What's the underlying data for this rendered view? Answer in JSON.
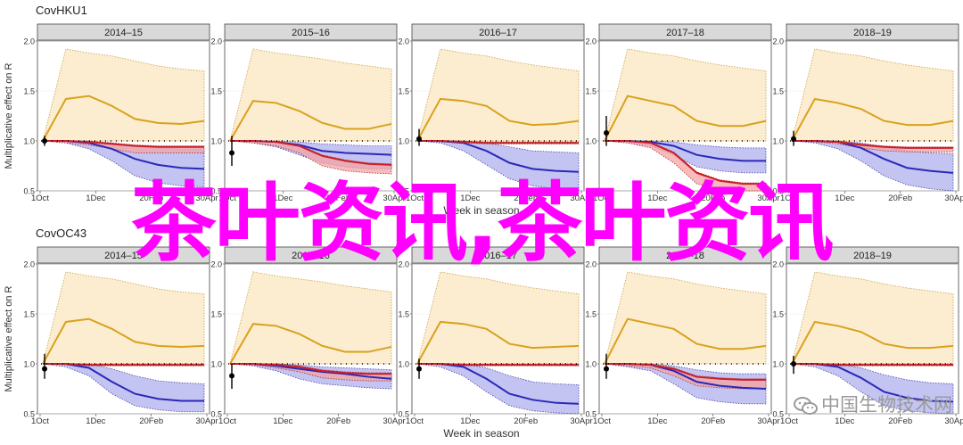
{
  "chart_data": [
    {
      "type": "area",
      "title": "CovHKU1",
      "ylabel": "Multiplicative effect on R",
      "xlabel": "Week in season",
      "ylim": [
        0.5,
        2.0
      ],
      "yticks": [
        "0.5",
        "1.0",
        "1.5",
        "2.0"
      ],
      "xticks": [
        "1Oct",
        "1Dec",
        "20Feb",
        "30Apr"
      ],
      "panels": [
        {
          "season": "2014–15",
          "orange_mid": [
            1.0,
            1.42,
            1.45,
            1.35,
            1.22,
            1.18,
            1.17,
            1.2
          ],
          "orange_lo": [
            1.0,
            1.0,
            1.0,
            1.0,
            1.0,
            1.0,
            1.0,
            1.0
          ],
          "orange_hi": [
            1.0,
            1.92,
            1.88,
            1.85,
            1.8,
            1.75,
            1.72,
            1.7
          ],
          "red_mid": [
            1.0,
            1.0,
            0.99,
            0.97,
            0.95,
            0.94,
            0.94,
            0.94
          ],
          "red_lo": [
            1.0,
            0.98,
            0.96,
            0.92,
            0.88,
            0.88,
            0.88,
            0.88
          ],
          "blue_mid": [
            1.0,
            1.0,
            0.98,
            0.92,
            0.82,
            0.76,
            0.73,
            0.72
          ],
          "blue_lo": [
            1.0,
            0.98,
            0.92,
            0.8,
            0.65,
            0.58,
            0.55,
            0.54
          ],
          "blue_hi": [
            1.0,
            1.0,
            1.0,
            0.98,
            0.95,
            0.93,
            0.92,
            0.92
          ],
          "marker": 1.0,
          "marker_lo": 0.95,
          "marker_hi": 1.05
        },
        {
          "season": "2015–16",
          "orange_mid": [
            1.0,
            1.4,
            1.38,
            1.3,
            1.18,
            1.12,
            1.12,
            1.17
          ],
          "orange_lo": [
            1.0,
            1.0,
            1.0,
            1.0,
            1.0,
            1.0,
            1.0,
            1.0
          ],
          "orange_hi": [
            1.0,
            1.92,
            1.88,
            1.85,
            1.82,
            1.78,
            1.75,
            1.72
          ],
          "red_mid": [
            1.0,
            1.0,
            0.99,
            0.95,
            0.85,
            0.8,
            0.77,
            0.76
          ],
          "red_lo": [
            1.0,
            0.98,
            0.95,
            0.88,
            0.75,
            0.7,
            0.68,
            0.67
          ],
          "blue_mid": [
            1.0,
            1.0,
            0.99,
            0.96,
            0.9,
            0.88,
            0.87,
            0.86
          ],
          "blue_lo": [
            1.0,
            0.98,
            0.94,
            0.86,
            0.78,
            0.74,
            0.72,
            0.72
          ],
          "blue_hi": [
            1.0,
            1.0,
            1.0,
            0.99,
            0.97,
            0.96,
            0.95,
            0.95
          ],
          "marker": 0.88,
          "marker_lo": 0.75,
          "marker_hi": 1.05
        },
        {
          "season": "2016–17",
          "orange_mid": [
            1.0,
            1.42,
            1.4,
            1.35,
            1.2,
            1.16,
            1.17,
            1.2
          ],
          "orange_lo": [
            1.0,
            1.0,
            1.0,
            1.0,
            1.0,
            1.0,
            1.0,
            1.0
          ],
          "orange_hi": [
            1.0,
            1.92,
            1.88,
            1.85,
            1.8,
            1.76,
            1.73,
            1.7
          ],
          "red_mid": [
            1.0,
            1.0,
            0.99,
            0.98,
            0.98,
            0.98,
            0.98,
            0.98
          ],
          "red_lo": [
            1.0,
            0.99,
            0.98,
            0.97,
            0.97,
            0.97,
            0.97,
            0.97
          ],
          "blue_mid": [
            1.0,
            1.0,
            0.98,
            0.9,
            0.78,
            0.72,
            0.7,
            0.69
          ],
          "blue_lo": [
            1.0,
            0.98,
            0.9,
            0.76,
            0.62,
            0.55,
            0.52,
            0.51
          ],
          "blue_hi": [
            1.0,
            1.0,
            1.0,
            0.98,
            0.94,
            0.9,
            0.89,
            0.88
          ],
          "marker": 1.02,
          "marker_lo": 0.95,
          "marker_hi": 1.12
        },
        {
          "season": "2017–18",
          "orange_mid": [
            1.0,
            1.45,
            1.4,
            1.35,
            1.2,
            1.15,
            1.15,
            1.2
          ],
          "orange_lo": [
            1.0,
            1.0,
            1.0,
            1.0,
            1.0,
            1.0,
            1.0,
            1.0
          ],
          "orange_hi": [
            1.0,
            1.92,
            1.88,
            1.85,
            1.8,
            1.76,
            1.73,
            1.7
          ],
          "red_mid": [
            1.0,
            1.0,
            0.98,
            0.88,
            0.68,
            0.6,
            0.57,
            0.57
          ],
          "red_lo": [
            1.0,
            0.98,
            0.93,
            0.78,
            0.57,
            0.52,
            0.5,
            0.5
          ],
          "blue_mid": [
            1.0,
            1.0,
            0.99,
            0.95,
            0.86,
            0.82,
            0.8,
            0.8
          ],
          "blue_lo": [
            1.0,
            0.98,
            0.95,
            0.86,
            0.74,
            0.7,
            0.68,
            0.68
          ],
          "blue_hi": [
            1.0,
            1.0,
            1.0,
            0.99,
            0.96,
            0.94,
            0.93,
            0.93
          ],
          "marker": 1.08,
          "marker_lo": 0.95,
          "marker_hi": 1.25
        },
        {
          "season": "2018–19",
          "orange_mid": [
            1.0,
            1.42,
            1.38,
            1.32,
            1.2,
            1.16,
            1.16,
            1.2
          ],
          "orange_lo": [
            1.0,
            1.0,
            1.0,
            1.0,
            1.0,
            1.0,
            1.0,
            1.0
          ],
          "orange_hi": [
            1.0,
            1.92,
            1.88,
            1.85,
            1.8,
            1.76,
            1.73,
            1.7
          ],
          "red_mid": [
            1.0,
            1.0,
            0.99,
            0.96,
            0.94,
            0.93,
            0.93,
            0.93
          ],
          "red_lo": [
            1.0,
            0.99,
            0.97,
            0.93,
            0.9,
            0.89,
            0.89,
            0.89
          ],
          "blue_mid": [
            1.0,
            1.0,
            0.99,
            0.93,
            0.82,
            0.73,
            0.7,
            0.68
          ],
          "blue_lo": [
            1.0,
            0.98,
            0.92,
            0.8,
            0.65,
            0.56,
            0.52,
            0.5
          ],
          "blue_hi": [
            1.0,
            1.0,
            1.0,
            0.98,
            0.94,
            0.9,
            0.88,
            0.87
          ],
          "marker": 1.02,
          "marker_lo": 0.95,
          "marker_hi": 1.1
        }
      ]
    },
    {
      "type": "area",
      "title": "CovOC43",
      "ylabel": "Multiplicative effect on R",
      "xlabel": "Week in season",
      "ylim": [
        0.5,
        2.0
      ],
      "yticks": [
        "0.5",
        "1.0",
        "1.5",
        "2.0"
      ],
      "xticks": [
        "1Oct",
        "1Dec",
        "20Feb",
        "30Apr"
      ],
      "panels": [
        {
          "season": "2014–15",
          "orange_mid": [
            1.0,
            1.42,
            1.45,
            1.35,
            1.22,
            1.18,
            1.17,
            1.18
          ],
          "orange_lo": [
            1.0,
            1.0,
            1.0,
            1.0,
            1.0,
            1.0,
            1.0,
            1.0
          ],
          "orange_hi": [
            1.0,
            1.92,
            1.88,
            1.85,
            1.8,
            1.75,
            1.72,
            1.7
          ],
          "red_mid": [
            1.0,
            1.0,
            0.99,
            0.99,
            0.99,
            0.99,
            0.99,
            0.99
          ],
          "red_lo": [
            1.0,
            0.99,
            0.98,
            0.98,
            0.98,
            0.98,
            0.98,
            0.98
          ],
          "blue_mid": [
            1.0,
            1.0,
            0.96,
            0.82,
            0.7,
            0.65,
            0.63,
            0.63
          ],
          "blue_lo": [
            1.0,
            0.97,
            0.88,
            0.7,
            0.58,
            0.54,
            0.52,
            0.52
          ],
          "blue_hi": [
            1.0,
            1.0,
            1.0,
            0.95,
            0.88,
            0.83,
            0.81,
            0.8
          ],
          "marker": 0.95,
          "marker_lo": 0.85,
          "marker_hi": 1.1
        },
        {
          "season": "2015–16",
          "orange_mid": [
            1.0,
            1.4,
            1.38,
            1.3,
            1.18,
            1.12,
            1.12,
            1.17
          ],
          "orange_lo": [
            1.0,
            1.0,
            1.0,
            1.0,
            1.0,
            1.0,
            1.0,
            1.0
          ],
          "orange_hi": [
            1.0,
            1.92,
            1.88,
            1.85,
            1.82,
            1.78,
            1.75,
            1.72
          ],
          "red_mid": [
            1.0,
            1.0,
            0.99,
            0.97,
            0.93,
            0.91,
            0.9,
            0.9
          ],
          "red_lo": [
            1.0,
            0.99,
            0.96,
            0.92,
            0.86,
            0.84,
            0.83,
            0.83
          ],
          "blue_mid": [
            1.0,
            1.0,
            0.98,
            0.95,
            0.92,
            0.9,
            0.87,
            0.85
          ],
          "blue_lo": [
            1.0,
            0.98,
            0.93,
            0.85,
            0.8,
            0.78,
            0.76,
            0.75
          ],
          "blue_hi": [
            1.0,
            1.0,
            1.0,
            0.99,
            0.97,
            0.96,
            0.95,
            0.94
          ],
          "marker": 0.88,
          "marker_lo": 0.75,
          "marker_hi": 1.0
        },
        {
          "season": "2016–17",
          "orange_mid": [
            1.0,
            1.42,
            1.4,
            1.35,
            1.2,
            1.16,
            1.17,
            1.18
          ],
          "orange_lo": [
            1.0,
            1.0,
            1.0,
            1.0,
            1.0,
            1.0,
            1.0,
            1.0
          ],
          "orange_hi": [
            1.0,
            1.92,
            1.88,
            1.85,
            1.8,
            1.76,
            1.73,
            1.7
          ],
          "red_mid": [
            1.0,
            1.0,
            0.99,
            0.99,
            0.99,
            0.99,
            0.99,
            0.99
          ],
          "red_lo": [
            1.0,
            0.99,
            0.98,
            0.98,
            0.98,
            0.98,
            0.98,
            0.98
          ],
          "blue_mid": [
            1.0,
            1.0,
            0.97,
            0.85,
            0.7,
            0.64,
            0.61,
            0.6
          ],
          "blue_lo": [
            1.0,
            0.97,
            0.88,
            0.72,
            0.58,
            0.53,
            0.51,
            0.5
          ],
          "blue_hi": [
            1.0,
            1.0,
            1.0,
            0.96,
            0.88,
            0.82,
            0.8,
            0.79
          ],
          "marker": 0.95,
          "marker_lo": 0.85,
          "marker_hi": 1.05
        },
        {
          "season": "2017–18",
          "orange_mid": [
            1.0,
            1.45,
            1.4,
            1.35,
            1.2,
            1.15,
            1.15,
            1.18
          ],
          "orange_lo": [
            1.0,
            1.0,
            1.0,
            1.0,
            1.0,
            1.0,
            1.0,
            1.0
          ],
          "orange_hi": [
            1.0,
            1.92,
            1.88,
            1.85,
            1.8,
            1.76,
            1.73,
            1.7
          ],
          "red_mid": [
            1.0,
            1.0,
            0.99,
            0.95,
            0.87,
            0.85,
            0.84,
            0.84
          ],
          "red_lo": [
            1.0,
            0.98,
            0.96,
            0.88,
            0.78,
            0.76,
            0.75,
            0.75
          ],
          "blue_mid": [
            1.0,
            1.0,
            0.99,
            0.93,
            0.82,
            0.78,
            0.76,
            0.75
          ],
          "blue_lo": [
            1.0,
            0.97,
            0.93,
            0.8,
            0.66,
            0.62,
            0.6,
            0.6
          ],
          "blue_hi": [
            1.0,
            1.0,
            1.0,
            0.98,
            0.94,
            0.91,
            0.9,
            0.9
          ],
          "marker": 0.95,
          "marker_lo": 0.85,
          "marker_hi": 1.1
        },
        {
          "season": "2018–19",
          "orange_mid": [
            1.0,
            1.42,
            1.38,
            1.32,
            1.2,
            1.16,
            1.16,
            1.18
          ],
          "orange_lo": [
            1.0,
            1.0,
            1.0,
            1.0,
            1.0,
            1.0,
            1.0,
            1.0
          ],
          "orange_hi": [
            1.0,
            1.92,
            1.88,
            1.85,
            1.8,
            1.76,
            1.73,
            1.7
          ],
          "red_mid": [
            1.0,
            1.0,
            0.99,
            0.99,
            0.99,
            0.99,
            0.99,
            0.99
          ],
          "red_lo": [
            1.0,
            0.99,
            0.98,
            0.98,
            0.98,
            0.98,
            0.98,
            0.98
          ],
          "blue_mid": [
            1.0,
            1.0,
            0.97,
            0.86,
            0.72,
            0.66,
            0.63,
            0.62
          ],
          "blue_lo": [
            1.0,
            0.97,
            0.88,
            0.72,
            0.58,
            0.53,
            0.51,
            0.5
          ],
          "blue_hi": [
            1.0,
            1.0,
            1.0,
            0.96,
            0.89,
            0.84,
            0.81,
            0.8
          ],
          "marker": 1.0,
          "marker_lo": 0.9,
          "marker_hi": 1.08
        }
      ]
    }
  ],
  "overlay_text": "茶叶资讯,茶叶资讯",
  "watermark_text": "中国生物技术网",
  "colors": {
    "orange_line": "#d9a11c",
    "orange_band": "#fbe7c0",
    "red_line": "#c8202a",
    "red_band": "#f4a4a4",
    "blue_line": "#2a28b8",
    "blue_band": "#b0b0ee",
    "strip": "#d9d9d9",
    "overlay": "#ff00ff"
  }
}
